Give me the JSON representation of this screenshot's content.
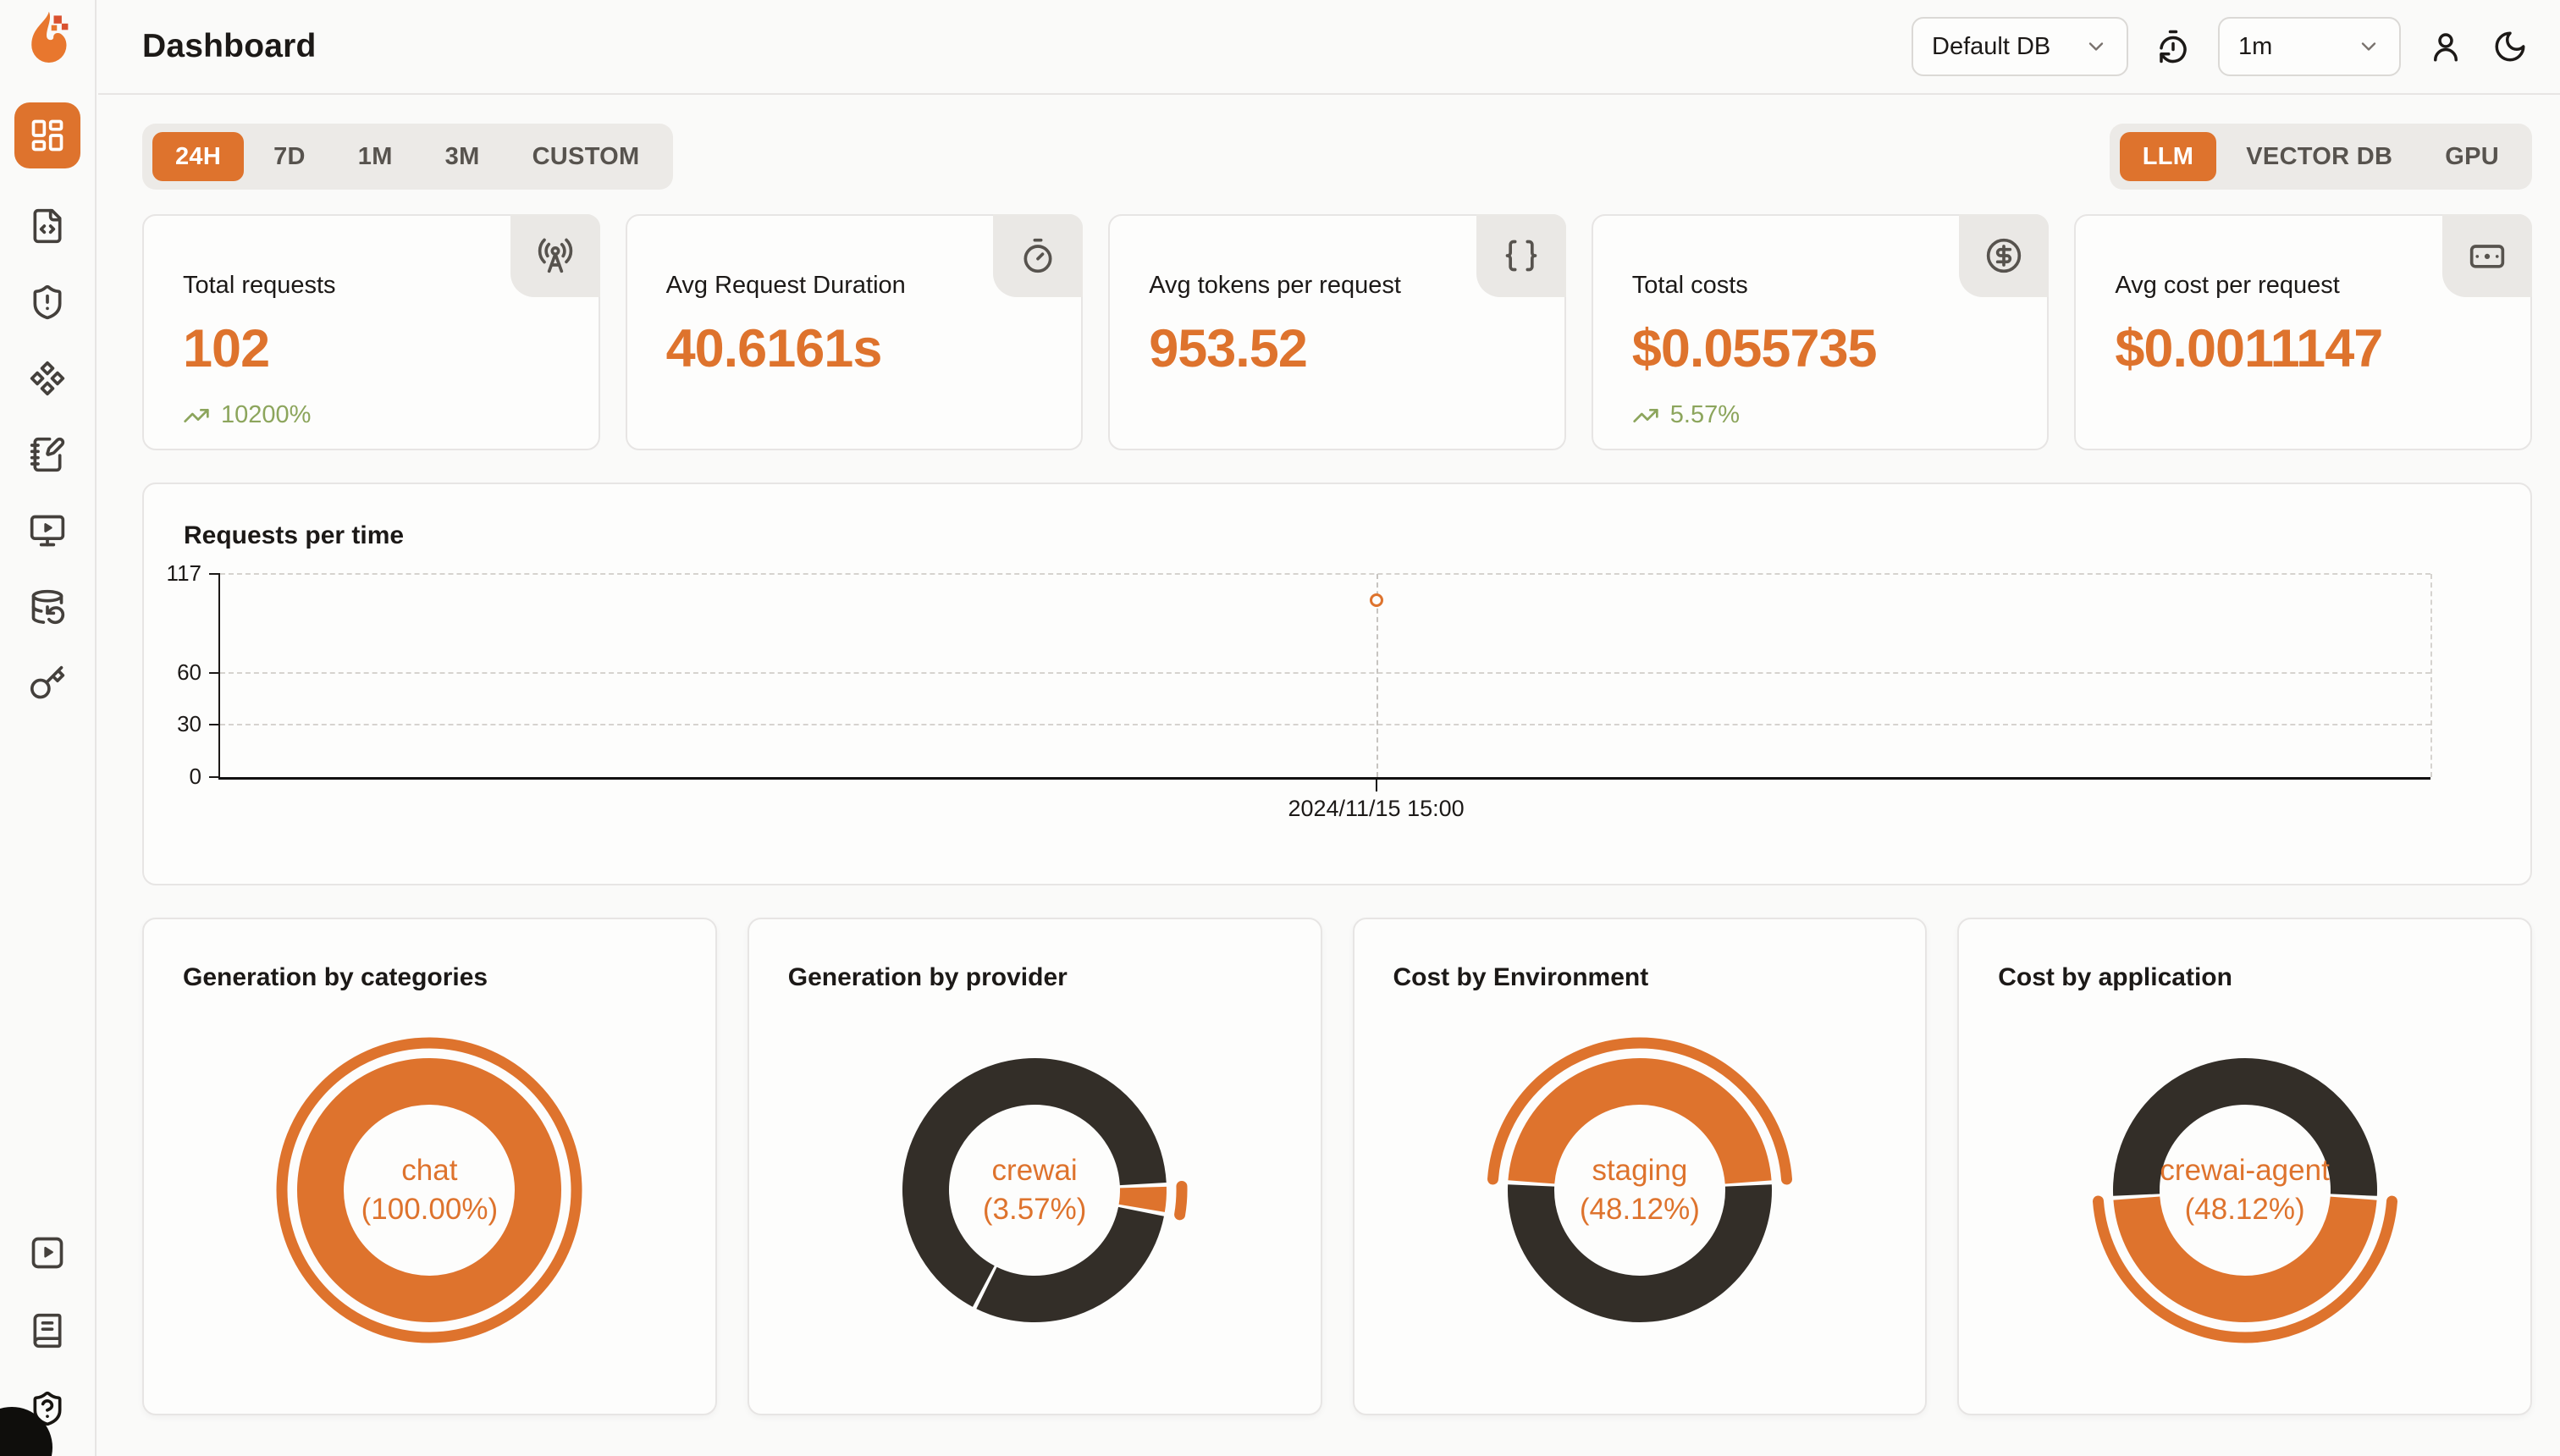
{
  "colors": {
    "accent": "#DE732D",
    "donut_dark": "#332E28",
    "delta_green": "#8CA55C",
    "page_bg": "#FAFAF9"
  },
  "sidebar": {
    "active": "layout-dashboard",
    "icons": [
      "layout-dashboard",
      "file-code",
      "shield-alert",
      "component",
      "notebook-pen",
      "monitor-play",
      "database-backup",
      "key",
      "square-play",
      "book",
      "shield-question"
    ]
  },
  "header": {
    "title": "Dashboard",
    "db_select": {
      "value": "Default DB"
    },
    "interval_select": {
      "value": "1m"
    },
    "icons": [
      "timer-reset",
      "user",
      "moon"
    ]
  },
  "toolbar": {
    "time_ranges": [
      "24H",
      "7D",
      "1M",
      "3M",
      "CUSTOM"
    ],
    "active_time_range": "24H",
    "resource_tabs": [
      "LLM",
      "VECTOR DB",
      "GPU"
    ],
    "active_resource_tab": "LLM"
  },
  "stat_cards": [
    {
      "title": "Total requests",
      "value": "102",
      "delta": "10200%",
      "icon": "radio-tower"
    },
    {
      "title": "Avg Request Duration",
      "value": "40.6161s",
      "icon": "timer"
    },
    {
      "title": "Avg tokens per request",
      "value": "953.52",
      "icon": "braces"
    },
    {
      "title": "Total costs",
      "value": "$0.055735",
      "delta": "5.57%",
      "icon": "circle-dollar-sign"
    },
    {
      "title": "Avg cost per request",
      "value": "$0.0011147",
      "icon": "wallet"
    }
  ],
  "chart_data": [
    {
      "type": "scatter",
      "title": "Requests per time",
      "x": [
        "2024/11/15 15:00"
      ],
      "series": [
        {
          "name": "requests",
          "values": [
            102
          ]
        }
      ],
      "ylim": [
        0,
        117
      ],
      "yticks": [
        117,
        60,
        30,
        0
      ],
      "x_position_frac": 0.523,
      "grid": "dashed-horizontal",
      "point_color": "#DE732D"
    },
    {
      "type": "pie",
      "title": "Generation by categories",
      "center_label_line1": "chat",
      "center_label_line2": "(100.00%)",
      "start_angle_deg": 0,
      "slices": [
        {
          "label": "chat",
          "value": 100,
          "color": "#DE732D",
          "highlight": true
        }
      ]
    },
    {
      "type": "pie",
      "title": "Generation by provider",
      "center_label_line1": "crewai",
      "center_label_line2": "(3.57%)",
      "start_angle_deg": 87.6,
      "slices": [
        {
          "label": "crewai",
          "value": 3.57,
          "color": "#DE732D",
          "highlight": true
        },
        {
          "label": "",
          "value": 29.6,
          "color": "#332E28"
        },
        {
          "label": "",
          "value": 66.83,
          "color": "#332E28"
        }
      ]
    },
    {
      "type": "pie",
      "title": "Cost by Environment",
      "center_label_line1": "staging",
      "center_label_line2": "(48.12%)",
      "start_angle_deg": 273.4,
      "slices": [
        {
          "label": "staging",
          "value": 48.12,
          "color": "#DE732D",
          "highlight": true
        },
        {
          "label": "",
          "value": 51.88,
          "color": "#332E28"
        }
      ]
    },
    {
      "type": "pie",
      "title": "Cost by application",
      "center_label_line1": "crewai-agent",
      "center_label_line2": "(48.12%)",
      "start_angle_deg": 93.4,
      "slices": [
        {
          "label": "crewai-agent",
          "value": 48.12,
          "color": "#DE732D",
          "highlight": true
        },
        {
          "label": "",
          "value": 51.88,
          "color": "#332E28"
        }
      ]
    }
  ]
}
